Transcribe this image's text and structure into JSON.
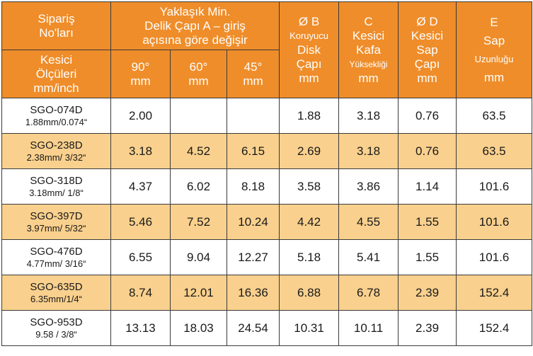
{
  "header": {
    "order_no": [
      "Sipariş",
      "No'ları"
    ],
    "cutter_dims": [
      "Kesici",
      "Ölçüleri",
      "mm/inch"
    ],
    "hole_diameter": [
      "Yaklaşık Min.",
      "Delik Çapı A – giriş",
      "açısına göre değişir"
    ],
    "angle_cols": [
      {
        "angle": "90°",
        "unit": "mm"
      },
      {
        "angle": "60°",
        "unit": "mm"
      },
      {
        "angle": "45°",
        "unit": "mm"
      }
    ],
    "col_b": [
      "Ø B",
      "Koruyucu",
      "Disk",
      "Çapı",
      "mm"
    ],
    "col_c": [
      "C",
      "Kesici",
      "Kafa",
      "Yüksekliği",
      "mm"
    ],
    "col_d": [
      "Ø D",
      "Kesici",
      "Sap",
      "Çapı",
      "mm"
    ],
    "col_e": [
      "E",
      "Sap",
      "Uzunluğu",
      "mm"
    ]
  },
  "rows": [
    {
      "code": "SGO-074D",
      "size": "1.88mm/0.074“",
      "a90": "2.00",
      "a60": "",
      "a45": "",
      "b": "1.88",
      "c": "3.18",
      "d": "0.76",
      "e": "63.5"
    },
    {
      "code": "SGO-238D",
      "size": "2.38mm/ 3/32“",
      "a90": "3.18",
      "a60": "4.52",
      "a45": "6.15",
      "b": "2.69",
      "c": "3.18",
      "d": "0.76",
      "e": "63.5"
    },
    {
      "code": "SGO-318D",
      "size": "3.18mm/ 1/8“",
      "a90": "4.37",
      "a60": "6.02",
      "a45": "8.18",
      "b": "3.58",
      "c": "3.86",
      "d": "1.14",
      "e": "101.6"
    },
    {
      "code": "SGO-397D",
      "size": "3.97mm/ 5/32“",
      "a90": "5.46",
      "a60": "7.52",
      "a45": "10.24",
      "b": "4.42",
      "c": "4.55",
      "d": "1.55",
      "e": "101.6"
    },
    {
      "code": "SGO-476D",
      "size": "4.77mm/ 3/16“",
      "a90": "6.55",
      "a60": "9.04",
      "a45": "12.27",
      "b": "5.18",
      "c": "5.41",
      "d": "1.55",
      "e": "101.6"
    },
    {
      "code": "SGO-635D",
      "size": "6.35mm/1/4“",
      "a90": "8.74",
      "a60": "12.01",
      "a45": "16.36",
      "b": "6.88",
      "c": "6.78",
      "d": "2.39",
      "e": "152.4"
    },
    {
      "code": "SGO-953D",
      "size": "9.58 / 3/8“",
      "a90": "13.13",
      "a60": "18.03",
      "a45": "24.54",
      "b": "10.31",
      "c": "10.11",
      "d": "2.39",
      "e": "152.4"
    }
  ],
  "colors": {
    "header_bg": "#ef8d2a",
    "stripe_bg": "#f9d08d",
    "row_bg": "#ffffff",
    "border": "#3a3a3a"
  }
}
